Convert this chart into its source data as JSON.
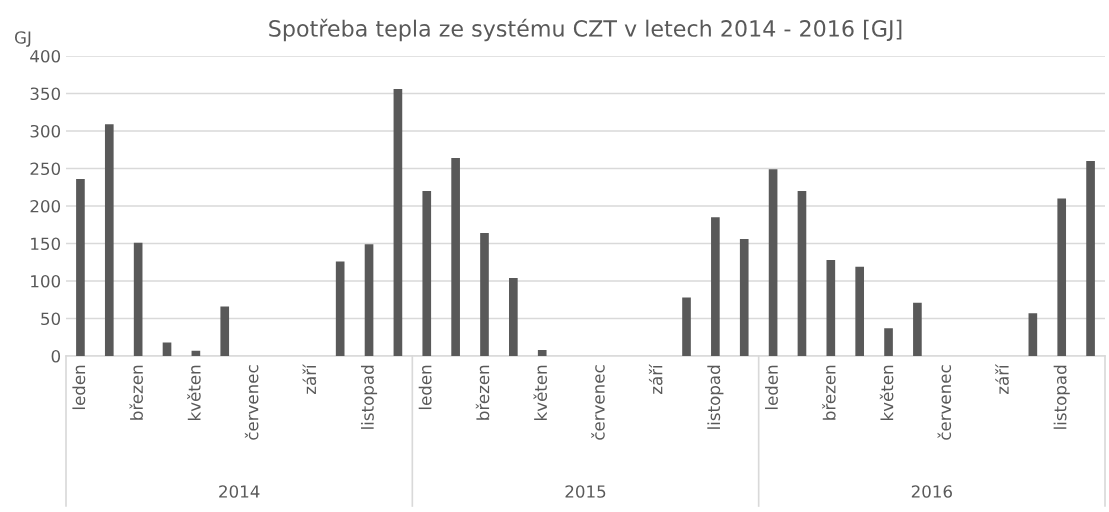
{
  "chart_data": {
    "type": "bar",
    "title": "Spotřeba tepla ze systému CZT v letech 2014 - 2016 [GJ]",
    "ylabel": "GJ",
    "categories": [
      "leden",
      null,
      "březen",
      null,
      "květen",
      null,
      "červenec",
      null,
      "září",
      null,
      "listopad",
      null,
      "leden",
      null,
      "březen",
      null,
      "květen",
      null,
      "červenec",
      null,
      "září",
      null,
      "listopad",
      null,
      "leden",
      null,
      "březen",
      null,
      "květen",
      null,
      "červenec",
      null,
      "září",
      null,
      "listopad",
      null
    ],
    "values": [
      236,
      309,
      151,
      18,
      7,
      66,
      0,
      0,
      0,
      126,
      149,
      356,
      220,
      264,
      164,
      104,
      8,
      0,
      0,
      0,
      0,
      78,
      185,
      156,
      249,
      220,
      128,
      119,
      37,
      71,
      0,
      0,
      0,
      57,
      210,
      260
    ],
    "color": "#595959",
    "annotations": [
      "2014",
      "2015",
      "2016"
    ],
    "ylim": [
      0,
      400
    ],
    "yticks": [
      0,
      50,
      100,
      150,
      200,
      250,
      300,
      350,
      400
    ],
    "grid": "y"
  }
}
